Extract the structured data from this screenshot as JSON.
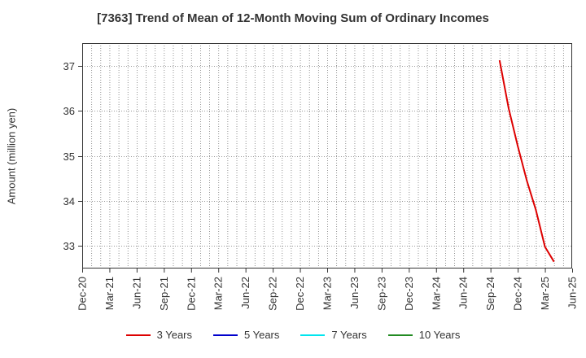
{
  "chart_data": {
    "type": "line",
    "title": "[7363]  Trend of Mean of 12-Month Moving Sum of Ordinary Incomes",
    "xlabel": "",
    "ylabel": "Amount (million yen)",
    "ylim": [
      32.5,
      37.5
    ],
    "yticks": [
      33,
      34,
      35,
      36,
      37
    ],
    "x_start": "2020-12",
    "x_end": "2025-06",
    "xtick_labels": [
      "Dec-20",
      "Mar-21",
      "Jun-21",
      "Sep-21",
      "Dec-21",
      "Mar-22",
      "Jun-22",
      "Sep-22",
      "Dec-22",
      "Mar-23",
      "Jun-23",
      "Sep-23",
      "Dec-23",
      "Mar-24",
      "Jun-24",
      "Sep-24",
      "Dec-24",
      "Mar-25",
      "Jun-25"
    ],
    "grid": true,
    "legend_position": "bottom",
    "series": [
      {
        "name": "3 Years",
        "color": "#dd0000",
        "points": [
          [
            "2024-10",
            37.12
          ],
          [
            "2024-11",
            36.05
          ],
          [
            "2024-12",
            35.22
          ],
          [
            "2025-01",
            34.45
          ],
          [
            "2025-02",
            33.8
          ],
          [
            "2025-03",
            32.98
          ],
          [
            "2025-04",
            32.65
          ]
        ]
      },
      {
        "name": "5 Years",
        "color": "#0000cc",
        "points": []
      },
      {
        "name": "7 Years",
        "color": "#00e5ee",
        "points": []
      },
      {
        "name": "10 Years",
        "color": "#228b22",
        "points": []
      }
    ]
  }
}
